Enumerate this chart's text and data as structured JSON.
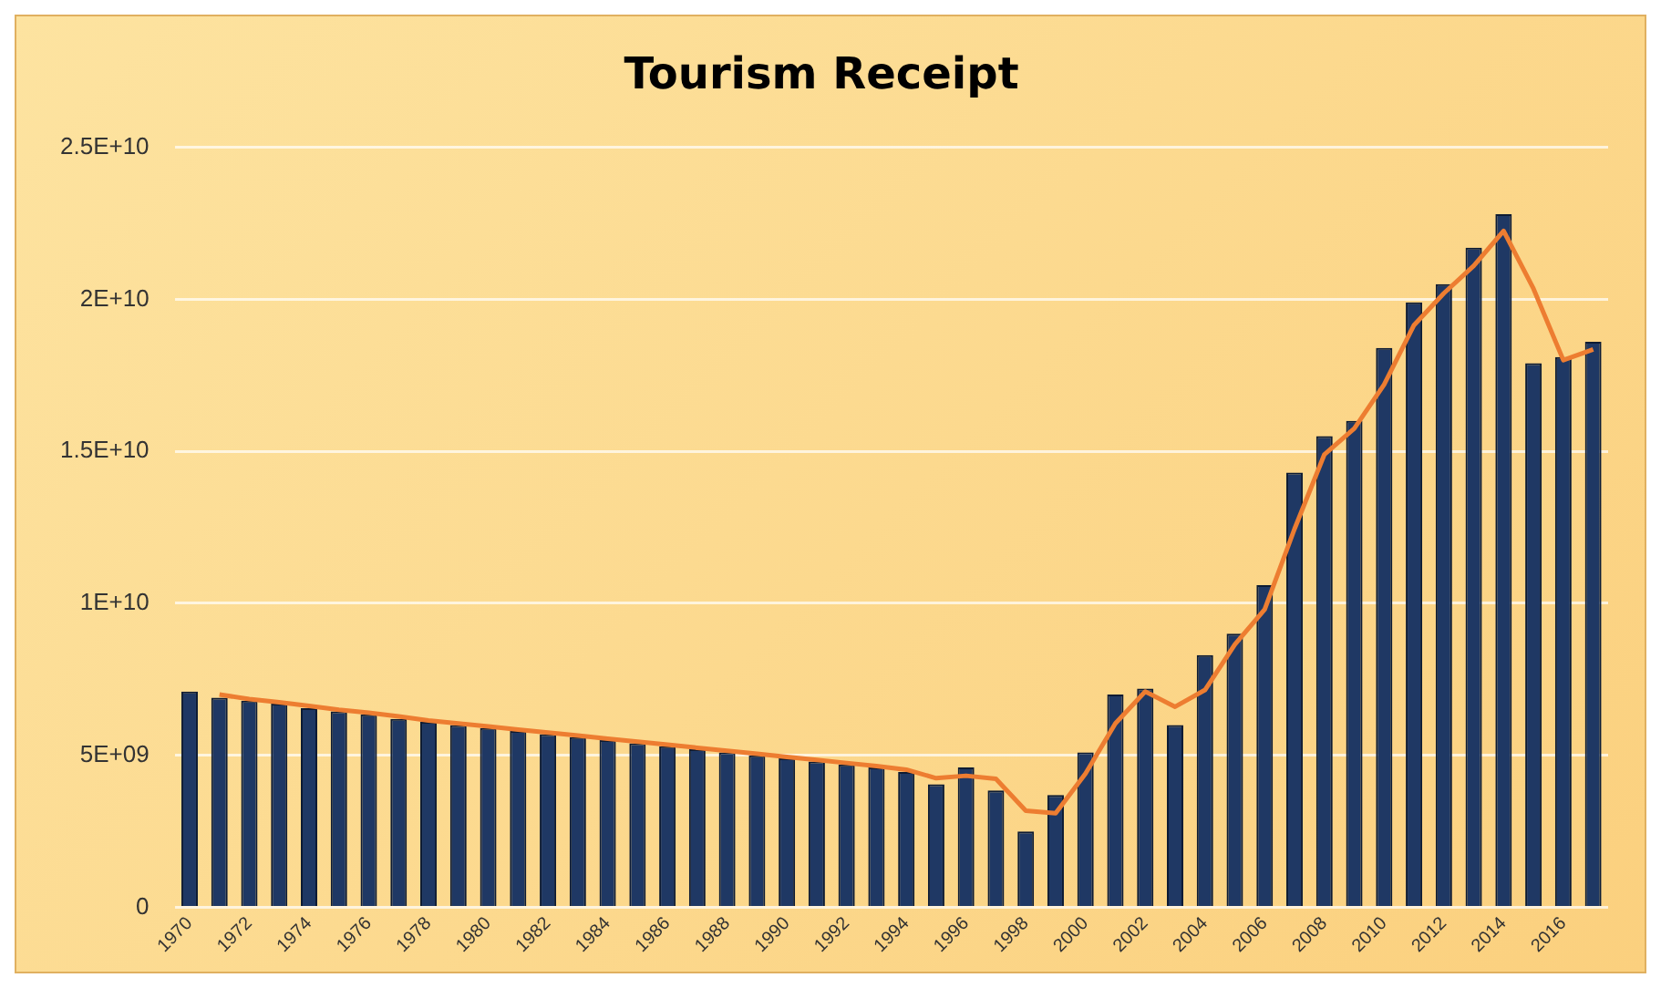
{
  "chart_data": {
    "type": "bar",
    "title": "Tourism Receipt",
    "categories": [
      "1970",
      null,
      "1972",
      null,
      "1974",
      null,
      "1976",
      null,
      "1978",
      null,
      "1980",
      null,
      "1982",
      null,
      "1984",
      null,
      "1986",
      null,
      "1988",
      null,
      "1990",
      null,
      "1992",
      null,
      "1994",
      null,
      "1996",
      null,
      "1998",
      null,
      "2000",
      null,
      "2002",
      null,
      "2004",
      null,
      "2006",
      null,
      "2008",
      null,
      "2010",
      null,
      "2012",
      null,
      "2014",
      null,
      "2016",
      null
    ],
    "series": [
      {
        "color": "#1f3864",
        "values": [
          7100000000,
          6900000000,
          6800000000,
          6700000000,
          6550000000,
          6450000000,
          6350000000,
          6200000000,
          6100000000,
          6000000000,
          5900000000,
          5800000000,
          5700000000,
          5600000000,
          5500000000,
          5400000000,
          5300000000,
          5200000000,
          5100000000,
          5000000000,
          4900000000,
          4800000000,
          4700000000,
          4600000000,
          4450000000,
          4050000000,
          4600000000,
          3850000000,
          2500000000,
          3700000000,
          5100000000,
          7000000000,
          7200000000,
          6000000000,
          8300000000,
          9000000000,
          10600000000,
          14300000000,
          15500000000,
          16000000000,
          18400000000,
          19900000000,
          20500000000,
          21700000000,
          22800000000,
          17900000000,
          18100000000,
          18600000000
        ]
      },
      {
        "type": "line",
        "color": "#ed7d31",
        "values": [
          null,
          7000000000,
          6850000000,
          6750000000,
          6630000000,
          6500000000,
          6400000000,
          6280000000,
          6150000000,
          6050000000,
          5950000000,
          5850000000,
          5750000000,
          5650000000,
          5550000000,
          5450000000,
          5350000000,
          5250000000,
          5150000000,
          5050000000,
          4950000000,
          4850000000,
          4750000000,
          4650000000,
          4530000000,
          4250000000,
          4330000000,
          4230000000,
          3180000000,
          3100000000,
          4400000000,
          6050000000,
          7100000000,
          6600000000,
          7150000000,
          8650000000,
          9800000000,
          12450000000,
          14900000000,
          15750000000,
          17200000000,
          19150000000,
          20200000000,
          21100000000,
          22250000000,
          20350000000,
          18000000000,
          18350000000
        ]
      }
    ],
    "ylim": [
      0,
      25000000000
    ],
    "yticks": [
      0,
      {
        "value": 5000000000,
        "label": "5E+09"
      },
      {
        "value": 10000000000,
        "label": "1E+10"
      },
      {
        "value": 15000000000,
        "label": "1.5E+10"
      },
      {
        "value": 20000000000,
        "label": "2E+10"
      },
      {
        "value": 25000000000,
        "label": "2.5E+10"
      }
    ],
    "grid": "y",
    "legend": false,
    "marker": "none",
    "line_style": "solid"
  }
}
